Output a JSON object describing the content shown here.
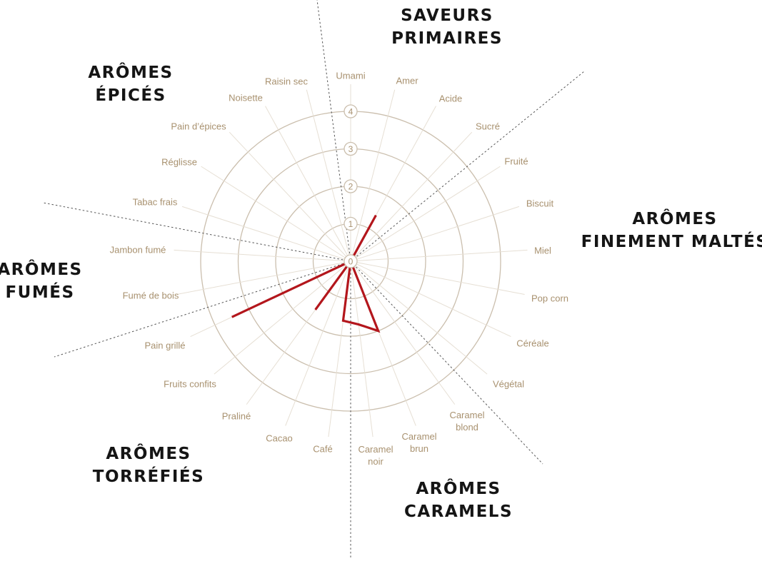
{
  "chart_data": {
    "type": "radar",
    "categories": [
      "Umami",
      "Amer",
      "Acide",
      "Sucré",
      "Fruité",
      "Biscuit",
      "Miel",
      "Pop corn",
      "Céréale",
      "Végétal",
      "Caramel blond",
      "Caramel brun",
      "Caramel noir",
      "Café",
      "Cacao",
      "Praliné",
      "Fruits confits",
      "Pain grillé",
      "Fumé de bois",
      "Jambon fumé",
      "Tabac frais",
      "Réglisse",
      "Pain d’épices",
      "Noisette",
      "Raisin sec"
    ],
    "values": [
      0,
      0,
      1.4,
      0,
      0,
      0,
      0,
      0,
      0,
      0,
      0,
      2.0,
      1.7,
      1.6,
      0,
      1.6,
      0,
      3.5,
      0,
      0,
      0,
      0,
      0,
      0,
      0
    ],
    "rlim": [
      0,
      4
    ],
    "ticks": [
      "0",
      "1",
      "2",
      "3",
      "4"
    ],
    "grid": true,
    "colors": {
      "series": "#b3161c",
      "grid": "#cbbfae",
      "spokes": "#e6dfd4",
      "labels": "#a8916f",
      "titles": "#151515"
    },
    "groups": [
      {
        "title_lines": [
          "SAVEURS",
          "PRIMAIRES"
        ],
        "categories": [
          "Umami",
          "Amer",
          "Acide",
          "Sucré"
        ]
      },
      {
        "title_lines": [
          "ARÔMES",
          "FINEMENT MALTÉS"
        ],
        "categories": [
          "Fruité",
          "Biscuit",
          "Miel",
          "Pop corn",
          "Céréale",
          "Végétal"
        ]
      },
      {
        "title_lines": [
          "ARÔMES",
          "CARAMELS"
        ],
        "categories": [
          "Caramel blond",
          "Caramel brun",
          "Caramel noir"
        ]
      },
      {
        "title_lines": [
          "ARÔMES",
          "TORRÉFIÉS"
        ],
        "categories": [
          "Café",
          "Cacao",
          "Praliné",
          "Fruits confits",
          "Pain grillé"
        ]
      },
      {
        "title_lines": [
          "ARÔMES",
          "FUMÉS"
        ],
        "categories": [
          "Fumé de bois",
          "Jambon fumé"
        ]
      },
      {
        "title_lines": [
          "ARÔMES",
          "ÉPICÉS"
        ],
        "categories": [
          "Tabac frais",
          "Réglisse",
          "Pain d’épices",
          "Noisette",
          "Raisin sec"
        ]
      }
    ]
  }
}
